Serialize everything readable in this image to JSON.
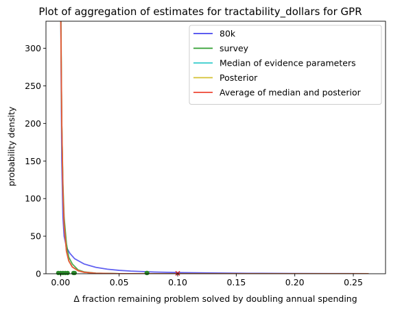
{
  "chart_data": {
    "type": "line",
    "title": "Plot of aggregation of estimates for tractability_dollars for GPR",
    "xlabel": "Δ fraction remaining problem solved by doubling annual spending",
    "ylabel": "probability density",
    "xlim": [
      -0.0125,
      0.2775
    ],
    "ylim": [
      0,
      336
    ],
    "xticks": [
      0.0,
      0.05,
      0.1,
      0.15,
      0.2,
      0.25
    ],
    "xtick_labels": [
      "0.00",
      "0.05",
      "0.10",
      "0.15",
      "0.20",
      "0.25"
    ],
    "yticks": [
      0,
      50,
      100,
      150,
      200,
      250,
      300
    ],
    "ytick_labels": [
      "0",
      "50",
      "100",
      "150",
      "200",
      "250",
      "300"
    ],
    "legend_position": "top-right",
    "grid": false,
    "series": [
      {
        "name": "80k",
        "color": "#4444ee",
        "x": [
          0.0002,
          0.0005,
          0.001,
          0.002,
          0.003,
          0.005,
          0.008,
          0.012,
          0.02,
          0.03,
          0.04,
          0.05,
          0.06,
          0.08,
          0.1,
          0.13,
          0.16,
          0.2,
          0.23,
          0.263
        ],
        "y": [
          336,
          250,
          150,
          75,
          50,
          35,
          27,
          20,
          13,
          8.5,
          6,
          4.5,
          3.5,
          2.3,
          1.6,
          1.0,
          0.6,
          0.35,
          0.2,
          0.1
        ]
      },
      {
        "name": "survey",
        "color": "#2e9e2e",
        "x": [
          0.0003,
          0.001,
          0.002,
          0.003,
          0.005,
          0.007,
          0.01,
          0.015,
          0.02,
          0.03,
          0.05,
          0.08,
          0.12,
          0.263
        ],
        "y": [
          336,
          200,
          120,
          75,
          40,
          22,
          13,
          5,
          2.5,
          0.8,
          0.1,
          0,
          0,
          0
        ]
      },
      {
        "name": "Median of evidence parameters",
        "color": "#33cccc",
        "x": [
          0.0002,
          0.0004,
          0.001,
          0.002,
          0.003,
          0.005,
          0.007,
          0.01,
          0.015,
          0.02,
          0.03,
          0.05,
          0.08,
          0.263
        ],
        "y": [
          336,
          300,
          200,
          110,
          65,
          30,
          17,
          9,
          4,
          2,
          0.7,
          0.1,
          0,
          0
        ]
      },
      {
        "name": "Posterior",
        "color": "#d4c030",
        "x": [
          0.0002,
          0.0004,
          0.001,
          0.002,
          0.003,
          0.005,
          0.007,
          0.01,
          0.015,
          0.02,
          0.03,
          0.05,
          0.08,
          0.263
        ],
        "y": [
          336,
          300,
          200,
          110,
          65,
          30,
          17,
          9,
          4,
          2,
          0.7,
          0.1,
          0,
          0
        ]
      },
      {
        "name": "Average of median and posterior",
        "color": "#ee4433",
        "x": [
          0.0002,
          0.0004,
          0.001,
          0.002,
          0.003,
          0.005,
          0.007,
          0.01,
          0.015,
          0.02,
          0.03,
          0.05,
          0.08,
          0.263
        ],
        "y": [
          336,
          300,
          200,
          110,
          65,
          30,
          17,
          9,
          4,
          2,
          0.7,
          0.1,
          0,
          0
        ]
      }
    ],
    "scatter_points": {
      "color": "#2a8a2a",
      "points": [
        {
          "x": -0.002,
          "y": 1
        },
        {
          "x": 0.0,
          "y": 1
        },
        {
          "x": 0.002,
          "y": 1
        },
        {
          "x": 0.004,
          "y": 1
        },
        {
          "x": 0.006,
          "y": 1
        },
        {
          "x": 0.011,
          "y": 1
        },
        {
          "x": 0.012,
          "y": 1
        },
        {
          "x": 0.0735,
          "y": 1
        },
        {
          "x": 0.074,
          "y": 1
        }
      ]
    },
    "x_markers": {
      "color": "#cc2222",
      "points": [
        {
          "x": 0.1,
          "y": 0.5
        }
      ]
    }
  }
}
